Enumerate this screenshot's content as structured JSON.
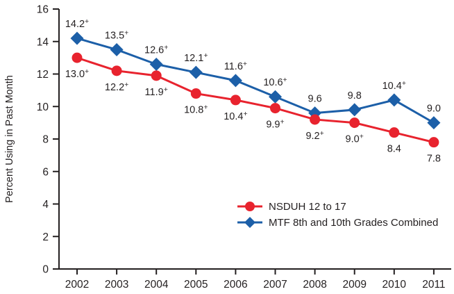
{
  "chart_data": {
    "type": "line",
    "title": "",
    "xlabel": "",
    "ylabel": "Percent Using in Past Month",
    "ylim": [
      0,
      16
    ],
    "yticks": [
      0,
      2,
      4,
      6,
      8,
      10,
      12,
      14,
      16
    ],
    "categories": [
      "2002",
      "2003",
      "2004",
      "2005",
      "2006",
      "2007",
      "2008",
      "2009",
      "2010",
      "2011"
    ],
    "grid": false,
    "legend_position": "inside-lower-middle",
    "axis_color": "#231f20",
    "text_color": "#231f20",
    "note": "+ indicates superscript plus on labeled values",
    "series": [
      {
        "name": "NSDUH 12 to 17",
        "color": "#e8232e",
        "marker": "circle",
        "label_position": "below",
        "values": [
          13.0,
          12.2,
          11.9,
          10.8,
          10.4,
          9.9,
          9.2,
          9.0,
          8.4,
          7.8
        ],
        "point_labels": [
          "13.0+",
          "12.2+",
          "11.9+",
          "10.8+",
          "10.4+",
          "9.9+",
          "9.2+",
          "9.0+",
          "8.4",
          "7.8"
        ]
      },
      {
        "name": "MTF 8th and 10th Grades Combined",
        "color": "#1c5fa8",
        "marker": "diamond",
        "label_position": "above",
        "values": [
          14.2,
          13.5,
          12.6,
          12.1,
          11.6,
          10.6,
          9.6,
          9.8,
          10.4,
          9.0
        ],
        "point_labels": [
          "14.2+",
          "13.5+",
          "12.6+",
          "12.1+",
          "11.6+",
          "10.6+",
          "9.6",
          "9.8",
          "10.4+",
          "9.0"
        ]
      }
    ]
  }
}
